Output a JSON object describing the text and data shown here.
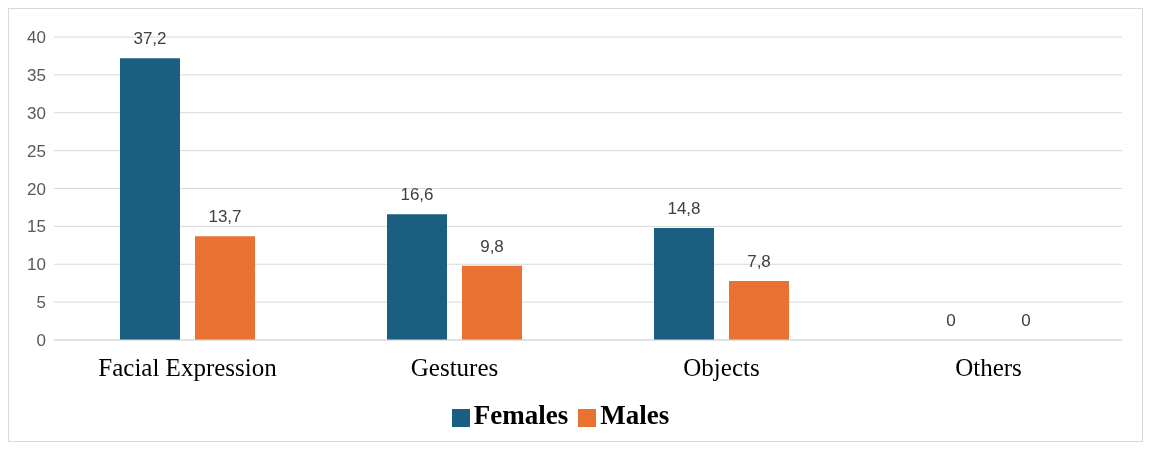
{
  "chart_data": {
    "type": "bar",
    "categories": [
      "Facial Expression",
      "Gestures",
      "Objects",
      "Others"
    ],
    "series": [
      {
        "name": "Females",
        "color": "#1a5e80",
        "values": [
          37.2,
          16.6,
          14.8,
          0
        ],
        "value_labels": [
          "37,2",
          "16,6",
          "14,8",
          "0"
        ]
      },
      {
        "name": "Males",
        "color": "#e97132",
        "values": [
          13.7,
          9.8,
          7.8,
          0
        ],
        "value_labels": [
          "13,7",
          "9,8",
          "7,8",
          "0"
        ]
      }
    ],
    "ylim": [
      0,
      40
    ],
    "yticks": [
      0,
      5,
      10,
      15,
      20,
      25,
      30,
      35,
      40
    ],
    "grid": "y",
    "legend": "bottom"
  }
}
